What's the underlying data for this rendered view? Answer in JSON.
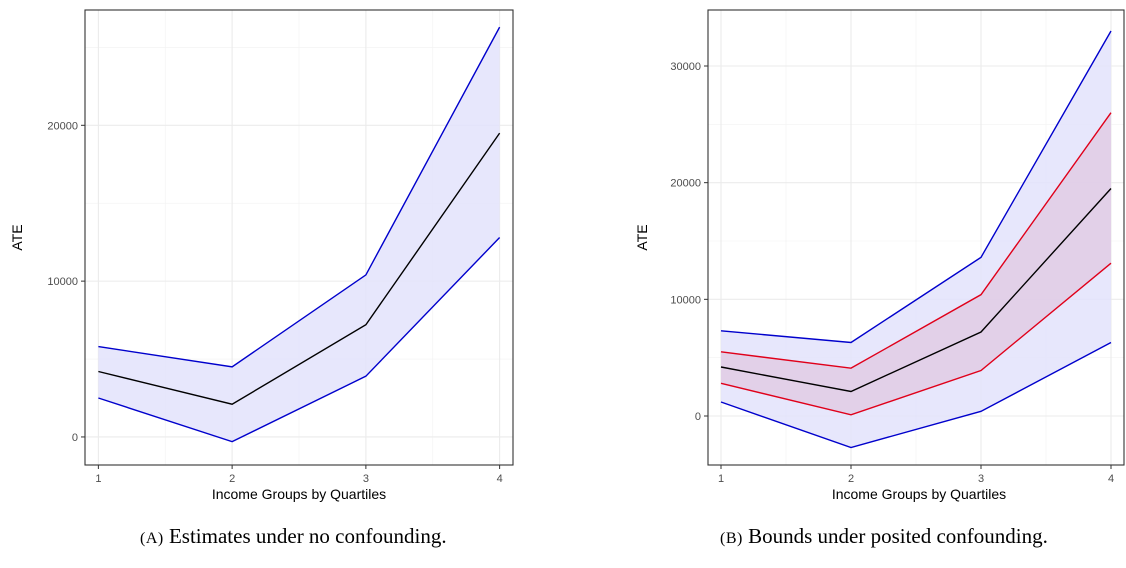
{
  "chart_data": [
    {
      "type": "line",
      "panel_label": "(A)",
      "caption": "Estimates under no confounding.",
      "xlabel": "Income Groups by Quartiles",
      "ylabel": "ATE",
      "x": [
        1,
        2,
        3,
        4
      ],
      "xlim": [
        0.9,
        4.1
      ],
      "ylim": [
        -1800,
        27400
      ],
      "xticks": [
        1,
        2,
        3,
        4
      ],
      "yticks": [
        0,
        10000,
        20000
      ],
      "grid": true,
      "bands": [
        {
          "lower": [
            2500,
            -300,
            3900,
            12800
          ],
          "upper": [
            5800,
            4500,
            10400,
            26300
          ],
          "color": "#0000cc",
          "fill": "#e3e3fc"
        }
      ],
      "series": [
        {
          "values": [
            4200,
            2100,
            7200,
            19500
          ],
          "color": "#000000"
        }
      ]
    },
    {
      "type": "line",
      "panel_label": "(B)",
      "caption": "Bounds under posited confounding.",
      "xlabel": "Income Groups by Quartiles",
      "ylabel": "ATE",
      "x": [
        1,
        2,
        3,
        4
      ],
      "xlim": [
        0.9,
        4.1
      ],
      "ylim": [
        -4200,
        34800
      ],
      "xticks": [
        1,
        2,
        3,
        4
      ],
      "yticks": [
        0,
        10000,
        20000,
        30000
      ],
      "grid": true,
      "bands": [
        {
          "lower": [
            1200,
            -2700,
            400,
            6300
          ],
          "upper": [
            7300,
            6300,
            13600,
            33000
          ],
          "color": "#0000cc",
          "fill": "#e3e3fc"
        },
        {
          "lower": [
            2800,
            100,
            3900,
            13100
          ],
          "upper": [
            5500,
            4100,
            10400,
            26000
          ],
          "color": "#e0001a",
          "fill": "#e1cbe4"
        }
      ],
      "series": [
        {
          "values": [
            4200,
            2100,
            7200,
            19500
          ],
          "color": "#000000"
        }
      ]
    }
  ]
}
